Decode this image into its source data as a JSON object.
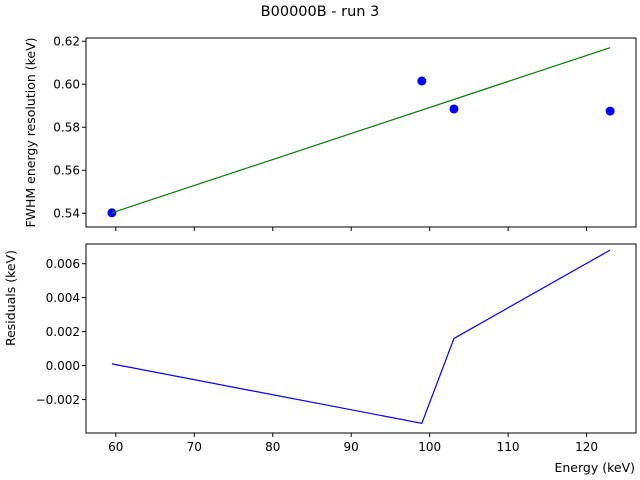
{
  "chart_data": {
    "title": "B00000B - run 3",
    "xlabel": "Energy (keV)",
    "xlim": [
      56.2,
      126.3
    ],
    "xticks": [
      60,
      70,
      80,
      90,
      100,
      110,
      120
    ],
    "colors": {
      "points": "#0000ff",
      "fit": "#008000",
      "residuals": "#0000ff"
    },
    "panels": [
      {
        "id": "resolution",
        "ylabel": "FWHM energy resolution (keV)",
        "ylim": [
          0.5336,
          0.6215
        ],
        "yticks": [
          "0.54",
          "0.56",
          "0.58",
          "0.60",
          "0.62"
        ],
        "series": [
          {
            "type": "scatter",
            "x": [
              59.5,
              99.0,
              103.1,
              123.0
            ],
            "y": [
              0.5402,
              0.6015,
              0.5885,
              0.5875
            ]
          },
          {
            "type": "line",
            "x": [
              59.5,
              123.0
            ],
            "y": [
              0.5402,
              0.617
            ]
          }
        ]
      },
      {
        "id": "residuals",
        "ylabel": "Residuals (keV)",
        "ylim": [
          -0.00397,
          0.00716
        ],
        "yticks": [
          "−0.002",
          "0.000",
          "0.002",
          "0.004",
          "0.006"
        ],
        "series": [
          {
            "type": "line",
            "x": [
              59.5,
              99.0,
              103.1,
              123.0
            ],
            "y": [
              0.0001,
              -0.0034,
              0.0016,
              0.0068
            ]
          }
        ]
      }
    ],
    "grid": false,
    "legend": "none"
  }
}
